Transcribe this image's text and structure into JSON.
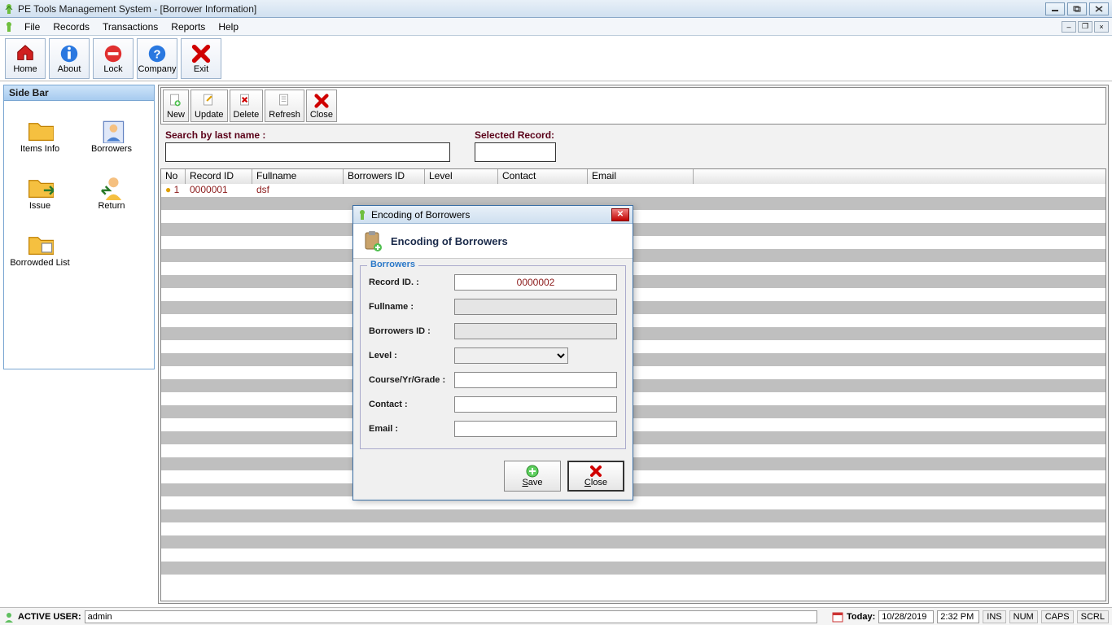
{
  "window": {
    "title": "PE Tools Management System - [Borrower Information]"
  },
  "menu": {
    "items": [
      "File",
      "Records",
      "Transactions",
      "Reports",
      "Help"
    ]
  },
  "main_toolbar": [
    {
      "name": "home-button",
      "label": "Home",
      "icon": "home"
    },
    {
      "name": "about-button",
      "label": "About",
      "icon": "info"
    },
    {
      "name": "lock-button",
      "label": "Lock",
      "icon": "minus"
    },
    {
      "name": "company-button",
      "label": "Company",
      "icon": "question"
    },
    {
      "name": "exit-button",
      "label": "Exit",
      "icon": "xred"
    }
  ],
  "sidebar": {
    "title": "Side Bar",
    "items": [
      {
        "name": "items-info",
        "label": "Items Info",
        "icon": "folder"
      },
      {
        "name": "borrowers",
        "label": "Borrowers",
        "icon": "person-card"
      },
      {
        "name": "issue",
        "label": "Issue",
        "icon": "folder-out"
      },
      {
        "name": "return",
        "label": "Return",
        "icon": "person-return"
      },
      {
        "name": "borrowed-list",
        "label": "Borrowded List",
        "icon": "folder-list"
      }
    ]
  },
  "content_toolbar": [
    {
      "name": "new-button",
      "label": "New",
      "icon": "doc-plus"
    },
    {
      "name": "update-button",
      "label": "Update",
      "icon": "doc-edit"
    },
    {
      "name": "delete-button",
      "label": "Delete",
      "icon": "doc-del"
    },
    {
      "name": "refresh-button",
      "label": "Refresh",
      "icon": "doc-ref"
    },
    {
      "name": "close-button",
      "label": "Close",
      "icon": "xred"
    }
  ],
  "search": {
    "by_last_name_label": "Search by last name :",
    "by_last_name_value": "",
    "selected_label": "Selected Record:",
    "selected_value": ""
  },
  "table": {
    "columns": [
      "No",
      "Record ID",
      "Fullname",
      "Borrowers ID",
      "Level",
      "Contact",
      "Email"
    ],
    "rows": [
      {
        "no": "1",
        "record_id": "0000001",
        "fullname": "dsf",
        "borrowers_id": "",
        "level": "",
        "contact": "",
        "email": ""
      }
    ],
    "visible_row_count": 30
  },
  "dialog": {
    "title": "Encoding of Borrowers",
    "header": "Encoding of Borrowers",
    "legend": "Borrowers",
    "fields": {
      "record_id_label": "Record ID. :",
      "record_id_value": "0000002",
      "fullname_label": "Fullname :",
      "fullname_value": "",
      "borrowers_id_label": "Borrowers ID :",
      "borrowers_id_value": "",
      "level_label": "Level :",
      "level_value": "",
      "course_label": "Course/Yr/Grade :",
      "course_value": "",
      "contact_label": "Contact :",
      "contact_value": "",
      "email_label": "Email :",
      "email_value": ""
    },
    "buttons": {
      "save": "Save",
      "close": "Close"
    }
  },
  "status": {
    "active_user_label": "ACTIVE USER:",
    "active_user_value": "admin",
    "today_label": "Today:",
    "date": "10/28/2019",
    "time": "2:32 PM",
    "segs": [
      "INS",
      "NUM",
      "CAPS",
      "SCRL"
    ]
  },
  "colors": {
    "title_grad_top": "#e8f0f8",
    "title_grad_bot": "#d0e0f0",
    "sidebar_grad_top": "#cde4f9",
    "sidebar_grad_bot": "#a7cbef",
    "stripe": "#bfbfbf",
    "data_text": "#8b1a1a",
    "legend_color": "#2a78c8"
  }
}
